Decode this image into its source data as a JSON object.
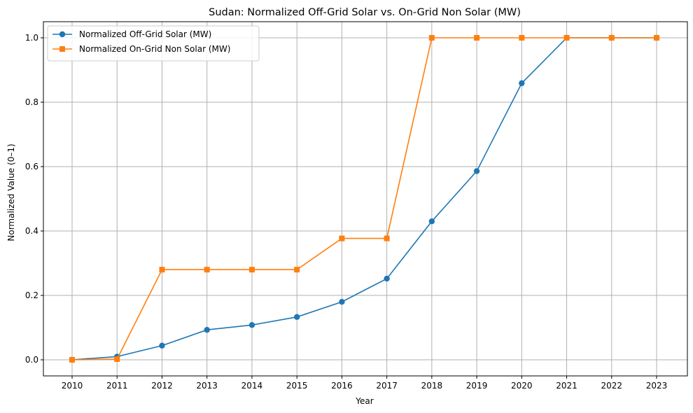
{
  "chart_data": {
    "type": "line",
    "title": "Sudan: Normalized Off-Grid Solar vs. On-Grid Non Solar (MW)",
    "xlabel": "Year",
    "ylabel": "Normalized Value (0–1)",
    "x": [
      "2010",
      "2011",
      "2012",
      "2013",
      "2014",
      "2015",
      "2016",
      "2017",
      "2018",
      "2019",
      "2020",
      "2021",
      "2022",
      "2023"
    ],
    "ylim": [
      -0.05,
      1.05
    ],
    "yticks": [
      "0.0",
      "0.2",
      "0.4",
      "0.6",
      "0.8",
      "1.0"
    ],
    "grid": true,
    "legend_position": "top-left",
    "series": [
      {
        "name": "Normalized Off-Grid Solar (MW)",
        "color": "#1f77b4",
        "marker": "circle",
        "values": [
          0.0,
          0.01,
          0.044,
          0.093,
          0.108,
          0.133,
          0.18,
          0.252,
          0.43,
          0.586,
          0.859,
          1.0,
          1.0,
          1.0
        ]
      },
      {
        "name": "Normalized On-Grid Non Solar (MW)",
        "color": "#ff7f0e",
        "marker": "square",
        "values": [
          0.0,
          0.002,
          0.28,
          0.28,
          0.28,
          0.28,
          0.377,
          0.377,
          1.0,
          1.0,
          1.0,
          1.0,
          1.0,
          1.0
        ]
      }
    ]
  }
}
